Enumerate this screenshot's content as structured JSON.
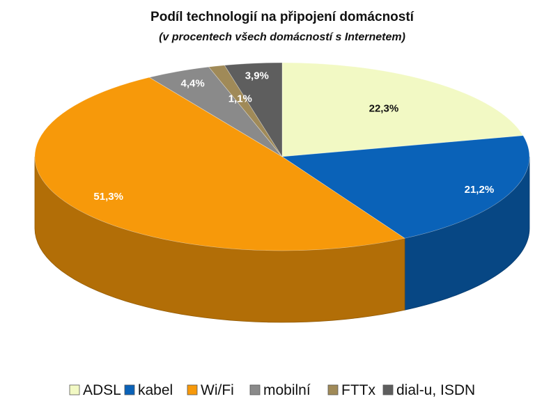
{
  "chart_data": {
    "type": "pie",
    "title": "Podíl technologií na připojení domácností",
    "subtitle": "(v procentech všech domácností s Internetem)",
    "categories": [
      "ADSL",
      "kabel",
      "Wi/Fi",
      "mobilní",
      "FTTx",
      "dial-u, ISDN"
    ],
    "values": [
      22.3,
      21.2,
      51.3,
      4.4,
      1.1,
      3.9
    ],
    "value_labels": [
      "22,3%",
      "21,2%",
      "51,3%",
      "4,4%",
      "1,1%",
      "3,9%"
    ],
    "colors": [
      "#f2f9c4",
      "#0a62b8",
      "#f7990a",
      "#8a8a8a",
      "#a08a58",
      "#5e5e5e"
    ],
    "label_colors": [
      "#111111",
      "#ffffff",
      "#ffffff",
      "#ffffff",
      "#ffffff",
      "#ffffff"
    ],
    "style": "3d-tilted",
    "legend_position": "bottom"
  }
}
